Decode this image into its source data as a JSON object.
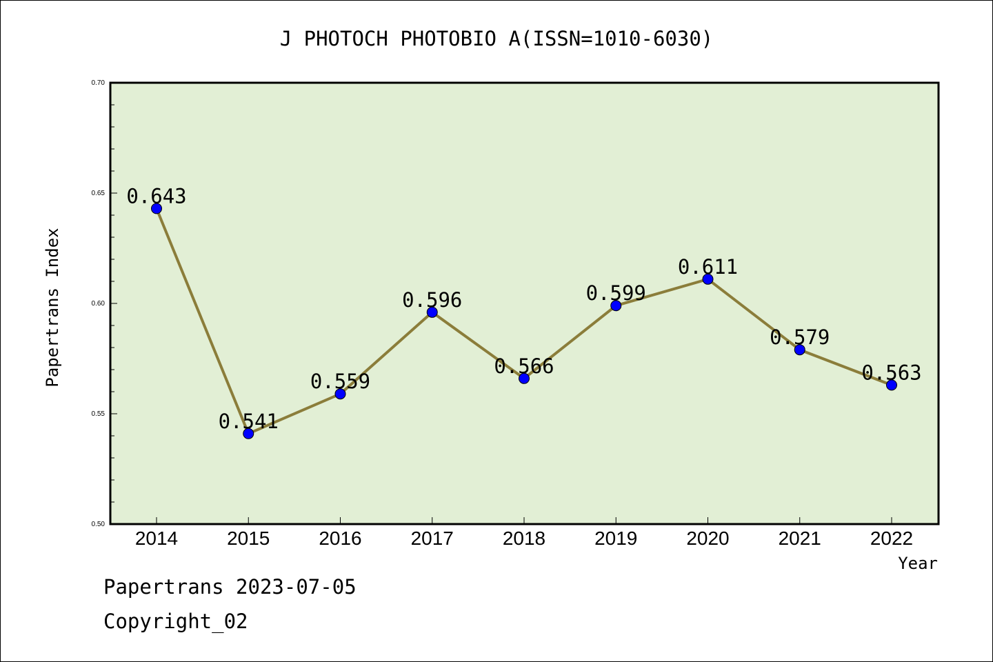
{
  "chart_data": {
    "type": "line",
    "title": "J PHOTOCH PHOTOBIO A(ISSN=1010-6030)",
    "xlabel": "Year",
    "ylabel": "Papertrans Index",
    "categories": [
      "2014",
      "2015",
      "2016",
      "2017",
      "2018",
      "2019",
      "2020",
      "2021",
      "2022"
    ],
    "values": [
      0.643,
      0.541,
      0.559,
      0.596,
      0.566,
      0.599,
      0.611,
      0.579,
      0.563
    ],
    "value_labels": [
      "0.643",
      "0.541",
      "0.559",
      "0.596",
      "0.566",
      "0.599",
      "0.611",
      "0.579",
      "0.563"
    ],
    "ylim": [
      0.5,
      0.7
    ],
    "yticks": [
      "0.50",
      "0.55",
      "0.60",
      "0.65",
      "0.70"
    ],
    "grid": false,
    "colors": {
      "plot_background": "#e2efd5",
      "line": "#8b7d3a",
      "marker": "#0000ff"
    }
  },
  "footer": {
    "line1": "Papertrans 2023-07-05",
    "line2": "Copyright_02"
  }
}
